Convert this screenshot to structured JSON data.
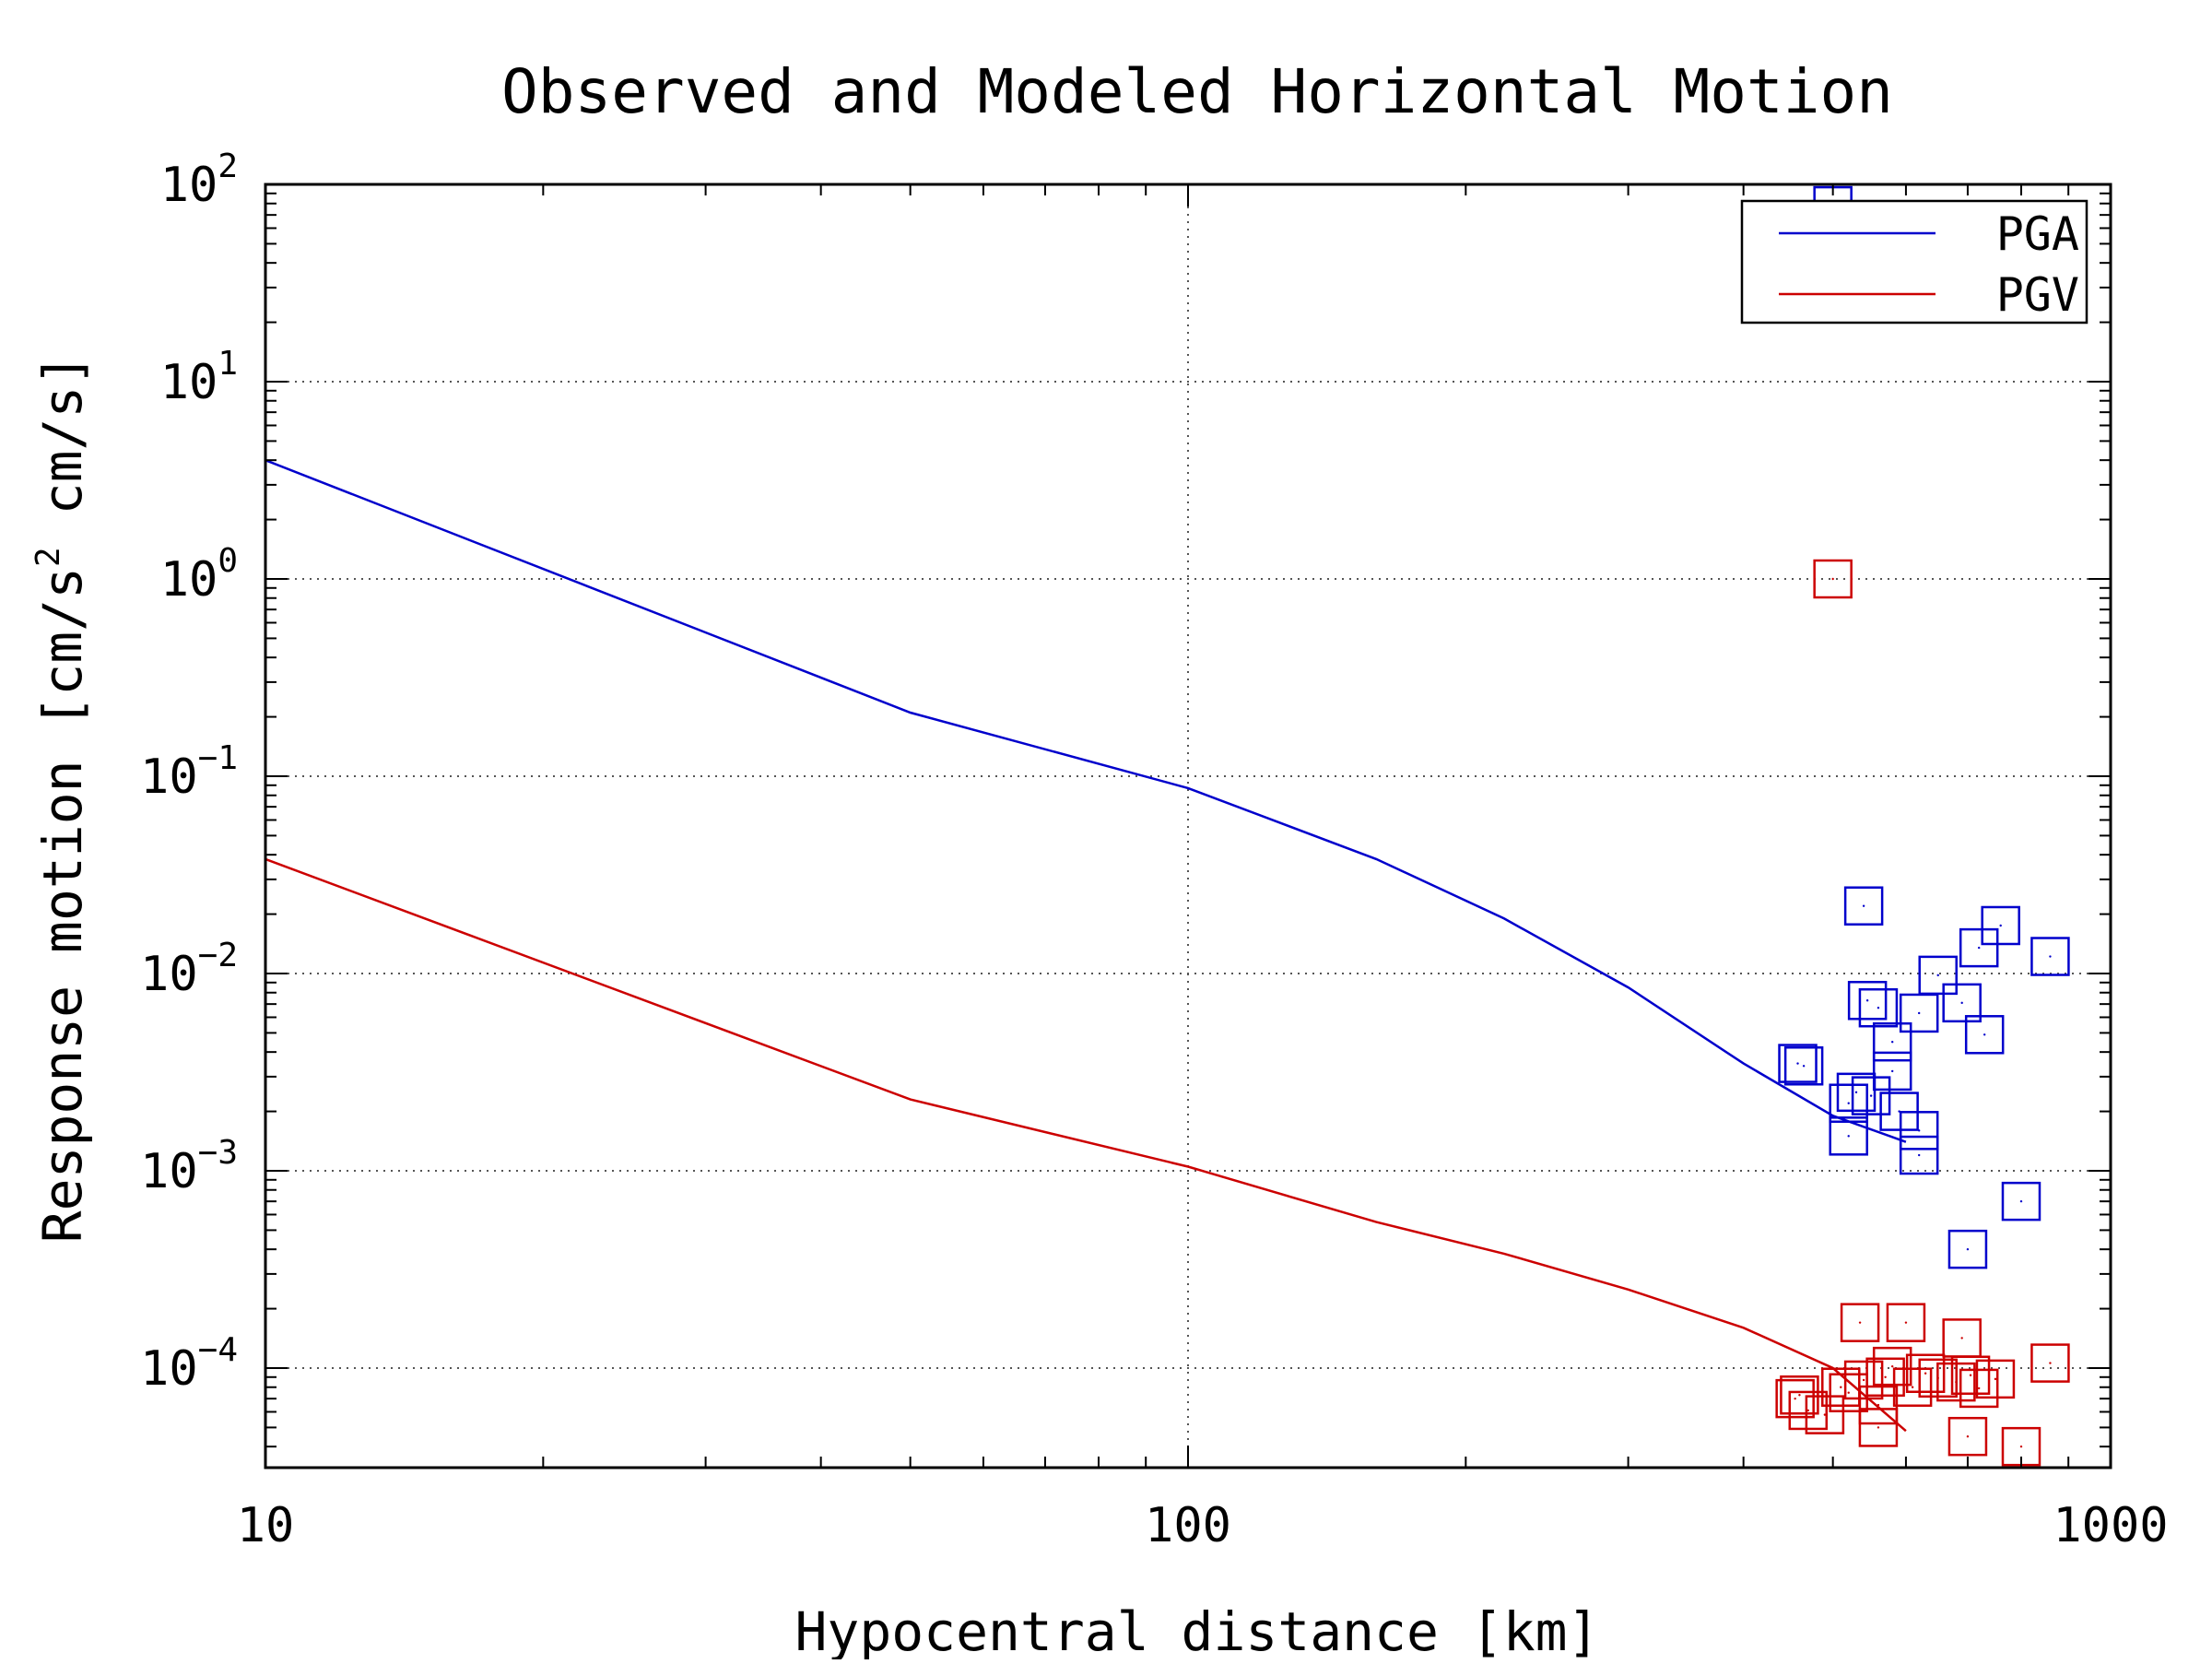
{
  "chart_data": {
    "type": "scatter",
    "title": "Observed and Modeled Horizontal Motion",
    "xlabel": "Hypocentral distance [km]",
    "ylabel": "Response motion [cm/s",
    "ylabel_exponent": "2",
    "ylabel_tail": " cm/s]",
    "x_scale": "log",
    "y_scale": "log",
    "xlim": [
      10,
      1000
    ],
    "ylim": [
      3e-05,
      100
    ],
    "grid": true,
    "legend_position": "top-right",
    "x_ticks": [
      {
        "value": 10,
        "label": "10"
      },
      {
        "value": 100,
        "label": "100"
      },
      {
        "value": 1000,
        "label": "1000"
      }
    ],
    "y_ticks": [
      {
        "value": 100,
        "base": "10",
        "exponent": "2"
      },
      {
        "value": 10,
        "base": "10",
        "exponent": "1"
      },
      {
        "value": 1,
        "base": "10",
        "exponent": "0"
      },
      {
        "value": 0.1,
        "base": "10",
        "exponent": "−1"
      },
      {
        "value": 0.01,
        "base": "10",
        "exponent": "−2"
      },
      {
        "value": 0.001,
        "base": "10",
        "exponent": "−3"
      },
      {
        "value": 0.0001,
        "base": "10",
        "exponent": "−4"
      }
    ],
    "series": [
      {
        "name": "PGA",
        "color": "#0000cc",
        "model_line": {
          "x": [
            10,
            50,
            100,
            160,
            220,
            300,
            400,
            500,
            600
          ],
          "y": [
            4.0,
            0.21,
            0.087,
            0.038,
            0.019,
            0.0085,
            0.0035,
            0.0019,
            0.0014
          ]
        },
        "observed": {
          "x": [
            500,
            540,
            580,
            620,
            690,
            700,
            760,
            860,
            545,
            560,
            650,
            620,
            458,
            465,
            530,
            520,
            550,
            590,
            580,
            520,
            620,
            730,
            720,
            800
          ],
          "y": [
            78,
            0.022,
            0.0045,
            0.0012,
            0.0071,
            0.0004,
            0.0175,
            0.0122,
            0.0073,
            0.0067,
            0.0098,
            0.0063,
            0.0035,
            0.0034,
            0.0025,
            0.0022,
            0.0024,
            0.002,
            0.0032,
            0.0015,
            0.0016,
            0.0049,
            0.0135,
            0.0007
          ]
        }
      },
      {
        "name": "PGV",
        "color": "#cc0000",
        "model_line": {
          "x": [
            10,
            50,
            100,
            160,
            220,
            300,
            400,
            500,
            600
          ],
          "y": [
            0.038,
            0.0023,
            0.00105,
            0.00055,
            0.00038,
            0.00025,
            0.00016,
            0.0001,
            4.8e-05
          ]
        },
        "observed": {
          "x": [
            500,
            535,
            600,
            690,
            700,
            860,
            455,
            460,
            470,
            490,
            510,
            520,
            540,
            560,
            570,
            580,
            610,
            630,
            650,
            680,
            705,
            720,
            750,
            800,
            560
          ],
          "y": [
            1.0,
            0.00017,
            0.00017,
            0.000142,
            4.5e-05,
            0.000106,
            7e-05,
            7.3e-05,
            6.1e-05,
            5.8e-05,
            8e-05,
            7.5e-05,
            8.7e-05,
            6.5e-05,
            9e-05,
            0.000102,
            8e-05,
            9.4e-05,
            8.9e-05,
            8.5e-05,
            9.2e-05,
            7.9e-05,
            8.8e-05,
            4e-05,
            5e-05
          ]
        }
      }
    ]
  }
}
